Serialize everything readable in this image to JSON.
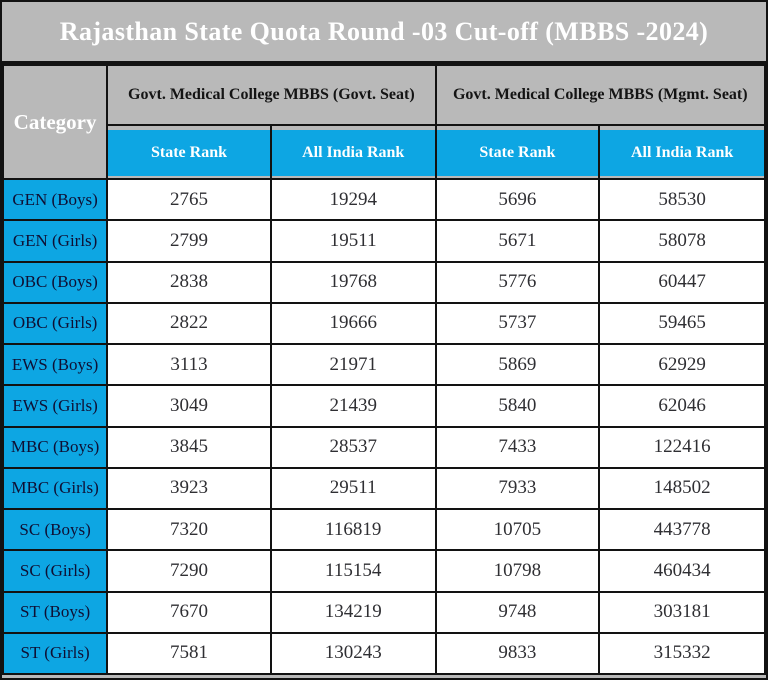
{
  "title": "Rajasthan State Quota Round -03 Cut-off (MBBS -2024)",
  "colors": {
    "accent_blue": "#0da6e3",
    "header_gray": "#b9b9b9",
    "border_black": "#121212"
  },
  "table": {
    "category_header": "Category",
    "groups": [
      {
        "label": "Govt. Medical College MBBS (Govt. Seat)",
        "columns": [
          "State Rank",
          "All India Rank"
        ]
      },
      {
        "label": "Govt. Medical College MBBS (Mgmt. Seat)",
        "columns": [
          "State Rank",
          "All India Rank"
        ]
      }
    ],
    "rows": [
      {
        "category": "GEN (Boys)",
        "values": [
          "2765",
          "19294",
          "5696",
          "58530"
        ]
      },
      {
        "category": "GEN (Girls)",
        "values": [
          "2799",
          "19511",
          "5671",
          "58078"
        ]
      },
      {
        "category": "OBC (Boys)",
        "values": [
          "2838",
          "19768",
          "5776",
          "60447"
        ]
      },
      {
        "category": "OBC (Girls)",
        "values": [
          "2822",
          "19666",
          "5737",
          "59465"
        ]
      },
      {
        "category": "EWS (Boys)",
        "values": [
          "3113",
          "21971",
          "5869",
          "62929"
        ]
      },
      {
        "category": "EWS (Girls)",
        "values": [
          "3049",
          "21439",
          "5840",
          "62046"
        ]
      },
      {
        "category": "MBC (Boys)",
        "values": [
          "3845",
          "28537",
          "7433",
          "122416"
        ]
      },
      {
        "category": "MBC (Girls)",
        "values": [
          "3923",
          "29511",
          "7933",
          "148502"
        ]
      },
      {
        "category": "SC (Boys)",
        "values": [
          "7320",
          "116819",
          "10705",
          "443778"
        ]
      },
      {
        "category": "SC (Girls)",
        "values": [
          "7290",
          "115154",
          "10798",
          "460434"
        ]
      },
      {
        "category": "ST (Boys)",
        "values": [
          "7670",
          "134219",
          "9748",
          "303181"
        ]
      },
      {
        "category": "ST (Girls)",
        "values": [
          "7581",
          "130243",
          "9833",
          "315332"
        ]
      }
    ]
  }
}
